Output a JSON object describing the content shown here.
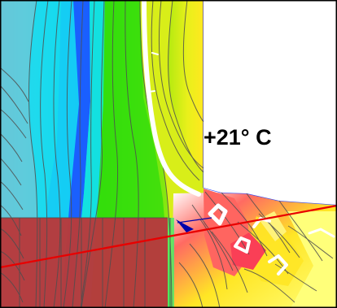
{
  "label": {
    "text": "+21° C"
  },
  "colors": {
    "blue": "#1f62ff",
    "cyan": "#11d9f0",
    "aqua": "#63f0ce",
    "green": "#4fe70f",
    "yellow_green": "#c7ef17",
    "yellow": "#ffe625",
    "light_yellow": "#ffff7a",
    "pink": "#ff6a62",
    "brick": "#b63b3d",
    "red_line": "#e80000",
    "frame": "#000000"
  }
}
